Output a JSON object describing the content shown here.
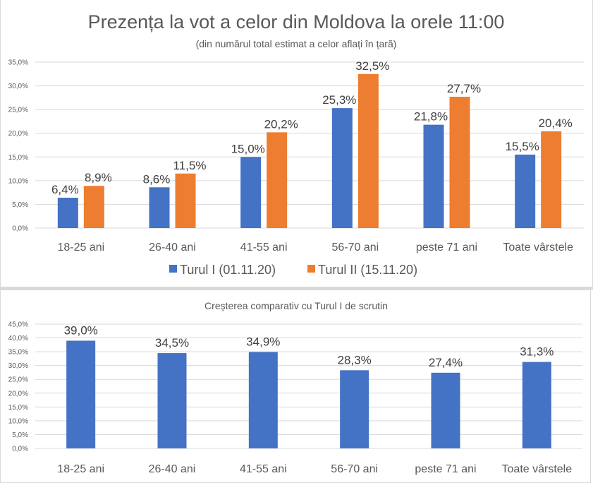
{
  "chart_data": [
    {
      "type": "bar",
      "title": "Prezența la vot a celor din Moldova  la orele 11:00",
      "subtitle": "(din numărul total estimat a celor aflați în țară)",
      "xlabel": "",
      "ylabel": "",
      "categories": [
        "18-25 ani",
        "26-40 ani",
        "41-55 ani",
        "56-70 ani",
        "peste 71 ani",
        "Toate vârstele"
      ],
      "series": [
        {
          "name": "Turul I (01.11.20)",
          "color": "#4472C4",
          "values": [
            6.4,
            8.6,
            15.0,
            25.3,
            21.8,
            15.5
          ],
          "labels": [
            "6,4%",
            "8,6%",
            "15,0%",
            "25,3%",
            "21,8%",
            "15,5%"
          ]
        },
        {
          "name": "Turul II (15.11.20)",
          "color": "#ED7D31",
          "values": [
            8.9,
            11.5,
            20.2,
            32.5,
            27.7,
            20.4
          ],
          "labels": [
            "8,9%",
            "11,5%",
            "20,2%",
            "32,5%",
            "27,7%",
            "20,4%"
          ]
        }
      ],
      "ylim": [
        0,
        35
      ],
      "yticks": [
        "0,0%",
        "5,0%",
        "10,0%",
        "15,0%",
        "20,0%",
        "25,0%",
        "30,0%",
        "35,0%"
      ],
      "grid": true,
      "legend": "bottom"
    },
    {
      "type": "bar",
      "title": "Creșterea comparativ cu Turul I de scrutin",
      "xlabel": "",
      "ylabel": "",
      "categories": [
        "18-25 ani",
        "26-40 ani",
        "41-55 ani",
        "56-70 ani",
        "peste 71 ani",
        "Toate vârstele"
      ],
      "series": [
        {
          "name": "Creștere",
          "color": "#4472C4",
          "values": [
            39.0,
            34.5,
            34.9,
            28.3,
            27.4,
            31.3
          ],
          "labels": [
            "39,0%",
            "34,5%",
            "34,9%",
            "28,3%",
            "27,4%",
            "31,3%"
          ]
        }
      ],
      "ylim": [
        0,
        45
      ],
      "yticks": [
        "0,0%",
        "5,0%",
        "10,0%",
        "15,0%",
        "20,0%",
        "25,0%",
        "30,0%",
        "35,0%",
        "40,0%",
        "45,0%"
      ],
      "grid": true,
      "legend": "none"
    }
  ]
}
